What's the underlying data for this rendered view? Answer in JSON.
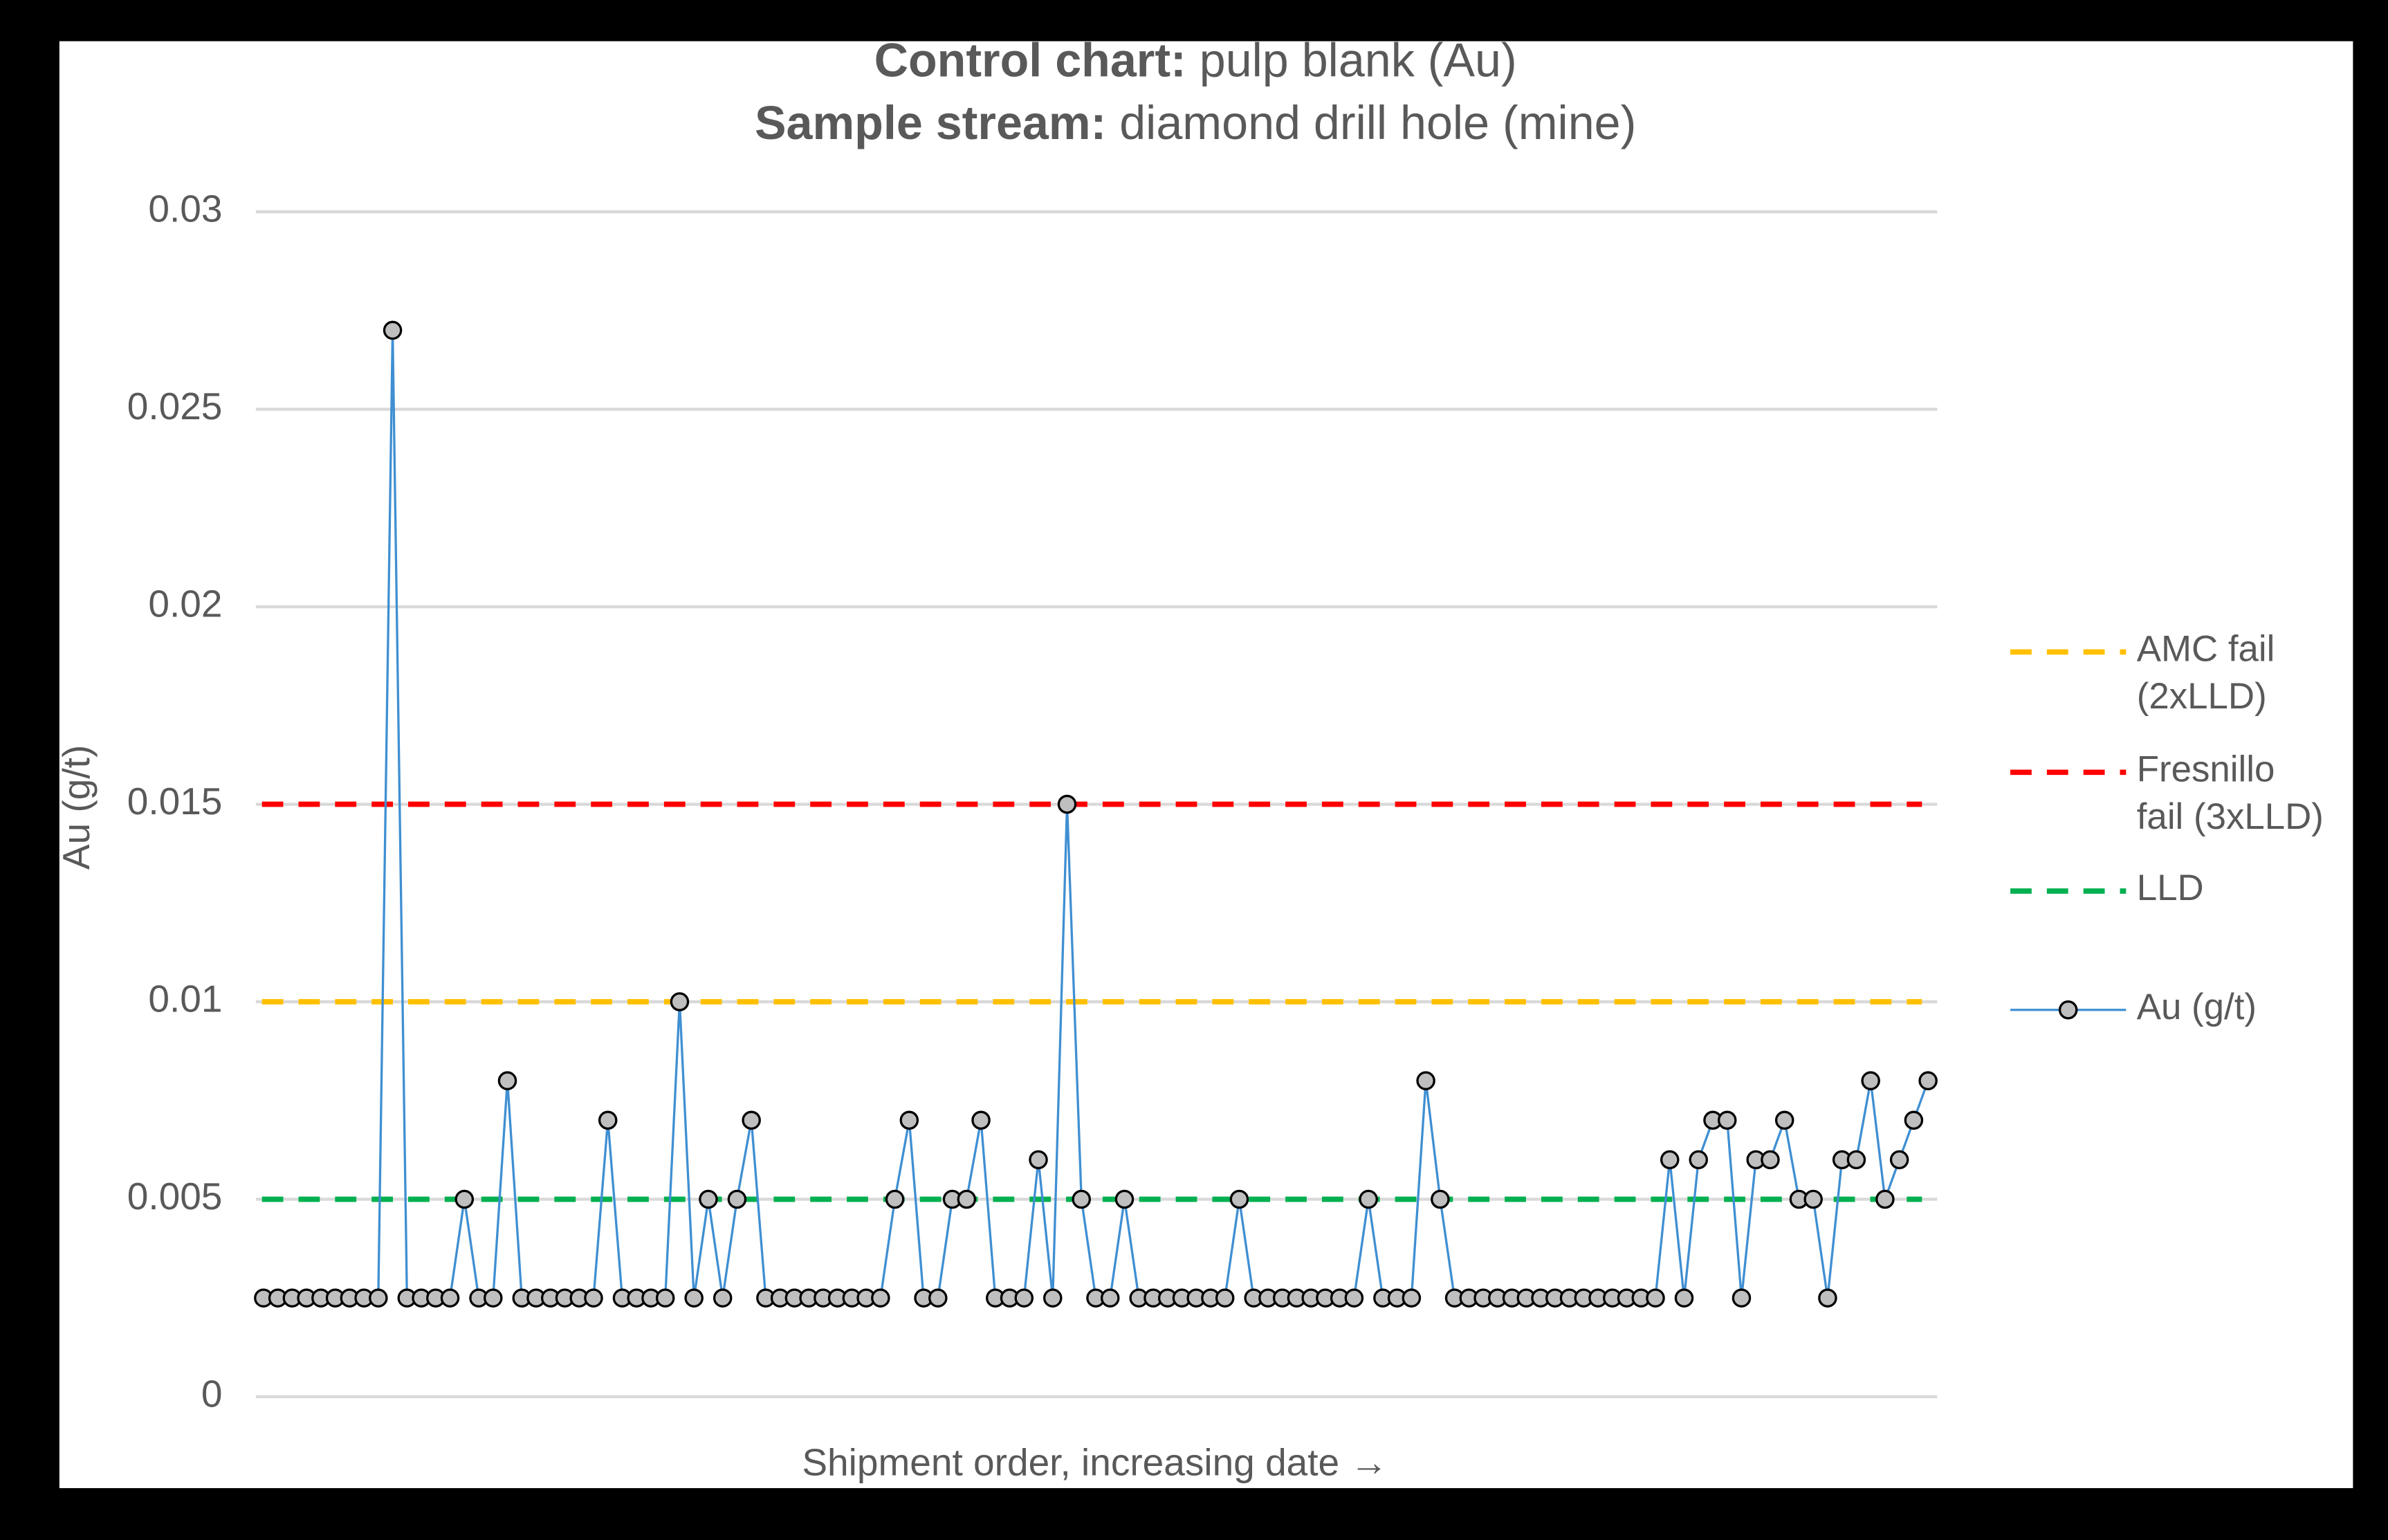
{
  "chart_data": {
    "type": "line",
    "title_lines": [
      {
        "label": "Control chart:",
        "text": "pulp blank (Au)"
      },
      {
        "label": "Sample stream:",
        "text": "diamond drill hole (mine)"
      }
    ],
    "x_label": "Shipment order, increasing date →",
    "y_label": "Au (g/t)",
    "ylim": [
      0,
      0.03
    ],
    "yticks": [
      0,
      0.005,
      0.01,
      0.015,
      0.02,
      0.025,
      0.03
    ],
    "grid": true,
    "legend": "right",
    "reference_lines": [
      {
        "name": "AMC fail\n(2xLLD)",
        "value": 0.01,
        "color": "#ffc000"
      },
      {
        "name": "Fresnillo\nfail (3xLLD)",
        "value": 0.015,
        "color": "#ff0000"
      },
      {
        "name": "LLD",
        "value": 0.005,
        "color": "#00b050"
      }
    ],
    "series": [
      {
        "name": "Au (g/t)",
        "color": "#3f8fd2",
        "values": [
          0.0025,
          0.0025,
          0.0025,
          0.0025,
          0.0025,
          0.0025,
          0.0025,
          0.0025,
          0.0025,
          0.027,
          0.0025,
          0.0025,
          0.0025,
          0.0025,
          0.005,
          0.0025,
          0.0025,
          0.008,
          0.0025,
          0.0025,
          0.0025,
          0.0025,
          0.0025,
          0.0025,
          0.007,
          0.0025,
          0.0025,
          0.0025,
          0.0025,
          0.01,
          0.0025,
          0.005,
          0.0025,
          0.005,
          0.007,
          0.0025,
          0.0025,
          0.0025,
          0.0025,
          0.0025,
          0.0025,
          0.0025,
          0.0025,
          0.0025,
          0.005,
          0.007,
          0.0025,
          0.0025,
          0.005,
          0.005,
          0.007,
          0.0025,
          0.0025,
          0.0025,
          0.006,
          0.0025,
          0.015,
          0.005,
          0.0025,
          0.0025,
          0.005,
          0.0025,
          0.0025,
          0.0025,
          0.0025,
          0.0025,
          0.0025,
          0.0025,
          0.005,
          0.0025,
          0.0025,
          0.0025,
          0.0025,
          0.0025,
          0.0025,
          0.0025,
          0.0025,
          0.005,
          0.0025,
          0.0025,
          0.0025,
          0.008,
          0.005,
          0.0025,
          0.0025,
          0.0025,
          0.0025,
          0.0025,
          0.0025,
          0.0025,
          0.0025,
          0.0025,
          0.0025,
          0.0025,
          0.0025,
          0.0025,
          0.0025,
          0.0025,
          0.006,
          0.0025,
          0.006,
          0.007,
          0.007,
          0.0025,
          0.006,
          0.006,
          0.007,
          0.005,
          0.005,
          0.0025,
          0.006,
          0.006,
          0.008,
          0.005,
          0.006,
          0.007,
          0.008
        ]
      }
    ]
  }
}
